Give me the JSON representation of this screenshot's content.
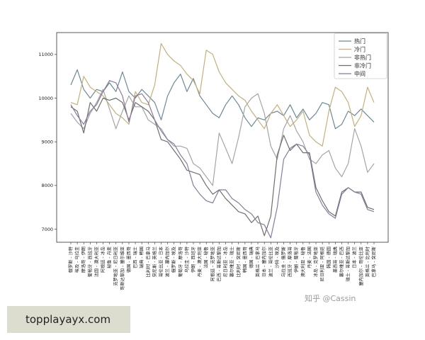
{
  "chart_data": {
    "type": "line",
    "ylim": [
      6700,
      11500
    ],
    "yticks": [
      7000,
      8000,
      9000,
      10000,
      11000
    ],
    "grid": false,
    "legend_position": "top-right",
    "categories": [
      "俄罗斯 - 沙特",
      "埃及 - 乌拉圭",
      "摩洛哥 - 伊朗",
      "葡萄牙 - 西班牙",
      "法国 - 澳大利亚",
      "阿根廷 - 冰岛",
      "秘鲁 - 丹麦",
      "克罗地亚 - 尼日利亚",
      "哥斯达黎加 - 塞尔维亚",
      "德国 - 墨西哥",
      "巴西 - 瑞士",
      "瑞典 - 韩国",
      "比利时 - 巴拿马",
      "突尼斯 - 英格兰",
      "哥伦比亚 - 日本",
      "波兰 - 塞内加尔",
      "俄罗斯 - 埃及",
      "葡萄牙 - 摩洛哥",
      "乌拉圭 - 沙特",
      "伊朗 - 西班牙",
      "丹麦 - 澳大利亚",
      "法国 - 秘鲁",
      "阿根廷 - 克罗地亚",
      "巴西 - 哥斯达黎加",
      "尼日利亚 - 冰岛",
      "塞尔维亚 - 瑞士",
      "比利时 - 突尼斯",
      "韩国 - 墨西哥",
      "德国 - 瑞典",
      "英格兰 - 巴拿马",
      "日本 - 塞内加尔",
      "波兰 - 哥伦比亚",
      "沙特 - 埃及",
      "乌拉圭 - 俄罗斯",
      "西班牙 - 摩洛哥",
      "伊朗 - 葡萄牙",
      "澳大利亚 - 秘鲁",
      "丹麦 - 法国",
      "冰岛 - 克罗地亚",
      "尼日利亚 - 阿根廷",
      "韩国 - 德国",
      "墨西哥 - 瑞典",
      "塞尔维亚 - 巴西",
      "瑞士 - 哥斯达黎加",
      "日本 - 波兰",
      "塞内加尔 - 哥伦比亚",
      "英格兰 - 比利时",
      "巴拿马 - 突尼斯"
    ],
    "series": [
      {
        "name": "热门",
        "color": "#6b8a9a",
        "values": [
          10300,
          10650,
          10200,
          10000,
          10200,
          10150,
          10350,
          10150,
          10600,
          10150,
          10000,
          10200,
          10050,
          9900,
          9500,
          10050,
          10350,
          10550,
          10150,
          10450,
          10050,
          9850,
          9650,
          9550,
          9850,
          10050,
          9850,
          9550,
          9350,
          9550,
          9500,
          9650,
          9700,
          9600,
          9850,
          9550,
          9750,
          9500,
          9650,
          9900,
          9850,
          9300,
          9400,
          9700,
          9600,
          9750,
          9600,
          9450
        ]
      },
      {
        "name": "冷门",
        "color": "#c5b07a",
        "values": [
          9900,
          9850,
          10500,
          10250,
          10150,
          10050,
          9850,
          9650,
          9550,
          9400,
          10150,
          9900,
          9850,
          10300,
          11250,
          11000,
          10850,
          10750,
          10550,
          10400,
          10100,
          11100,
          11000,
          10600,
          10350,
          10200,
          10050,
          9950,
          9700,
          9500,
          9300,
          9650,
          9850,
          9600,
          9350,
          9500,
          9700,
          9150,
          9000,
          8900,
          9700,
          10250,
          10150,
          9900,
          9350,
          9600,
          10250,
          9900
        ]
      },
      {
        "name": "非热门",
        "color": "#a5a5a5",
        "values": [
          9650,
          9450,
          9300,
          9650,
          9900,
          10200,
          9750,
          9300,
          9700,
          10050,
          9800,
          9800,
          9500,
          9400,
          9300,
          9050,
          8900,
          8900,
          8850,
          8500,
          8400,
          8200,
          8000,
          9200,
          8850,
          8500,
          9100,
          9800,
          10000,
          10100,
          9650,
          8900,
          8600,
          9300,
          9600,
          9250,
          9000,
          8600,
          8500,
          8700,
          8800,
          8400,
          8200,
          8500,
          9300,
          8900,
          8300,
          8500
        ]
      },
      {
        "name": "非冷门",
        "color": "#6e6e6e",
        "values": [
          9800,
          9700,
          9200,
          9900,
          9700,
          10000,
          9950,
          10000,
          9900,
          9500,
          9900,
          9800,
          9700,
          9500,
          9050,
          9000,
          8800,
          8600,
          8350,
          8300,
          8250,
          8000,
          7800,
          7900,
          7700,
          7550,
          7400,
          7350,
          7150,
          7300,
          6850,
          7300,
          8700,
          9150,
          8800,
          8950,
          8750,
          8750,
          7950,
          7650,
          7400,
          7300,
          7850,
          7950,
          7850,
          7850,
          7500,
          7450
        ]
      },
      {
        "name": "中间",
        "color": "#8a7a9e",
        "values": [
          9850,
          9600,
          9400,
          9700,
          9850,
          10150,
          10400,
          10350,
          10050,
          9450,
          10050,
          10100,
          9900,
          9500,
          9250,
          9050,
          8950,
          8700,
          8500,
          8000,
          7800,
          7650,
          7600,
          7900,
          7900,
          7700,
          7600,
          7450,
          7350,
          7150,
          7100,
          6800,
          7500,
          8600,
          8850,
          8950,
          8900,
          8700,
          7850,
          7550,
          7350,
          7250,
          7800,
          7950,
          7850,
          7800,
          7450,
          7400
        ]
      }
    ]
  },
  "watermark": "知乎 @Cassin",
  "banner": {
    "text": "topplayayx.com"
  }
}
